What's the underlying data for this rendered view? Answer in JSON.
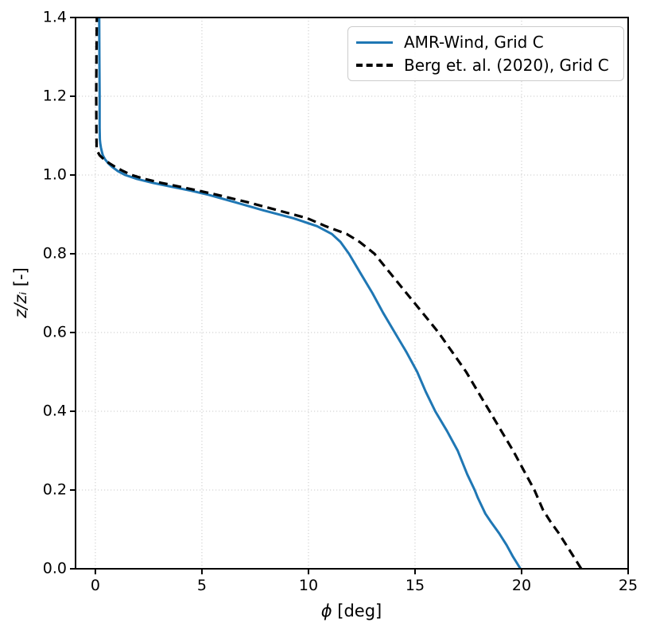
{
  "figure": {
    "xlabel": {
      "symbol": "ϕ",
      "unit": " [deg]"
    },
    "ylabel": {
      "symbol": "z/zᵢ",
      "unit": " [-]"
    },
    "legend": {
      "items": [
        {
          "label": "AMR-Wind, Grid C",
          "style": "solid",
          "color": "#1f77b4"
        },
        {
          "label": "Berg et. al. (2020), Grid C",
          "style": "dashed",
          "color": "#000000"
        }
      ]
    }
  },
  "chart_data": {
    "type": "line",
    "title": "",
    "xlabel": "ϕ [deg]",
    "ylabel": "z/zᵢ [-]",
    "xlim": [
      -0.93,
      25
    ],
    "ylim": [
      0.0,
      1.4
    ],
    "grid": true,
    "grid_style": "dotted",
    "grid_color": "#c9c9c9",
    "legend_position": "upper right",
    "xticks": [
      {
        "v": 0,
        "t": "0"
      },
      {
        "v": 5,
        "t": "5"
      },
      {
        "v": 10,
        "t": "10"
      },
      {
        "v": 15,
        "t": "15"
      },
      {
        "v": 20,
        "t": "20"
      },
      {
        "v": 25,
        "t": "25"
      }
    ],
    "yticks": [
      {
        "v": 0.0,
        "t": "0.0"
      },
      {
        "v": 0.2,
        "t": "0.2"
      },
      {
        "v": 0.4,
        "t": "0.4"
      },
      {
        "v": 0.6,
        "t": "0.6"
      },
      {
        "v": 0.8,
        "t": "0.8"
      },
      {
        "v": 1.0,
        "t": "1.0"
      },
      {
        "v": 1.2,
        "t": "1.2"
      },
      {
        "v": 1.4,
        "t": "1.4"
      }
    ],
    "series": [
      {
        "name": "AMR-Wind, Grid C",
        "color": "#1f77b4",
        "dash": "solid",
        "linewidth": 3,
        "points_phi_z": [
          [
            19.95,
            0.0
          ],
          [
            19.6,
            0.03
          ],
          [
            19.3,
            0.06
          ],
          [
            18.95,
            0.09
          ],
          [
            18.55,
            0.12
          ],
          [
            18.3,
            0.14
          ],
          [
            17.95,
            0.18
          ],
          [
            17.8,
            0.2
          ],
          [
            17.45,
            0.24
          ],
          [
            17.0,
            0.3
          ],
          [
            16.5,
            0.35
          ],
          [
            15.95,
            0.4
          ],
          [
            15.5,
            0.45
          ],
          [
            15.1,
            0.5
          ],
          [
            14.6,
            0.55
          ],
          [
            14.05,
            0.6
          ],
          [
            13.5,
            0.65
          ],
          [
            13.0,
            0.7
          ],
          [
            12.45,
            0.75
          ],
          [
            11.9,
            0.8
          ],
          [
            11.5,
            0.83
          ],
          [
            11.1,
            0.85
          ],
          [
            10.4,
            0.87
          ],
          [
            9.3,
            0.89
          ],
          [
            7.9,
            0.91
          ],
          [
            6.6,
            0.93
          ],
          [
            5.3,
            0.95
          ],
          [
            4.5,
            0.96
          ],
          [
            3.6,
            0.97
          ],
          [
            2.7,
            0.98
          ],
          [
            1.95,
            0.99
          ],
          [
            1.4,
            1.0
          ],
          [
            1.05,
            1.01
          ],
          [
            0.8,
            1.02
          ],
          [
            0.6,
            1.03
          ],
          [
            0.45,
            1.04
          ],
          [
            0.35,
            1.05
          ],
          [
            0.3,
            1.06
          ],
          [
            0.26,
            1.07
          ],
          [
            0.23,
            1.08
          ],
          [
            0.21,
            1.09
          ],
          [
            0.2,
            1.12
          ],
          [
            0.2,
            1.2
          ],
          [
            0.19,
            1.3
          ],
          [
            0.18,
            1.4
          ]
        ]
      },
      {
        "name": "Berg et. al. (2020), Grid C",
        "color": "#000000",
        "dash": "dashed",
        "linewidth": 3.2,
        "points_phi_z": [
          [
            22.8,
            0.0
          ],
          [
            22.45,
            0.03
          ],
          [
            22.1,
            0.06
          ],
          [
            21.75,
            0.09
          ],
          [
            21.35,
            0.12
          ],
          [
            21.0,
            0.15
          ],
          [
            20.6,
            0.2
          ],
          [
            20.1,
            0.25
          ],
          [
            19.6,
            0.3
          ],
          [
            19.05,
            0.35
          ],
          [
            18.5,
            0.4
          ],
          [
            17.95,
            0.45
          ],
          [
            17.4,
            0.5
          ],
          [
            16.75,
            0.55
          ],
          [
            16.1,
            0.6
          ],
          [
            15.35,
            0.65
          ],
          [
            14.6,
            0.7
          ],
          [
            13.85,
            0.75
          ],
          [
            13.1,
            0.8
          ],
          [
            12.4,
            0.83
          ],
          [
            11.8,
            0.85
          ],
          [
            10.8,
            0.87
          ],
          [
            9.95,
            0.89
          ],
          [
            8.6,
            0.91
          ],
          [
            7.2,
            0.93
          ],
          [
            5.7,
            0.95
          ],
          [
            4.85,
            0.96
          ],
          [
            4.0,
            0.97
          ],
          [
            3.1,
            0.98
          ],
          [
            2.3,
            0.99
          ],
          [
            1.7,
            1.0
          ],
          [
            1.3,
            1.01
          ],
          [
            0.95,
            1.02
          ],
          [
            0.65,
            1.03
          ],
          [
            0.4,
            1.04
          ],
          [
            0.2,
            1.05
          ],
          [
            0.1,
            1.06
          ],
          [
            0.06,
            1.07
          ],
          [
            0.05,
            1.1
          ],
          [
            0.04,
            1.2
          ],
          [
            0.05,
            1.3
          ],
          [
            0.07,
            1.4
          ]
        ]
      }
    ]
  }
}
